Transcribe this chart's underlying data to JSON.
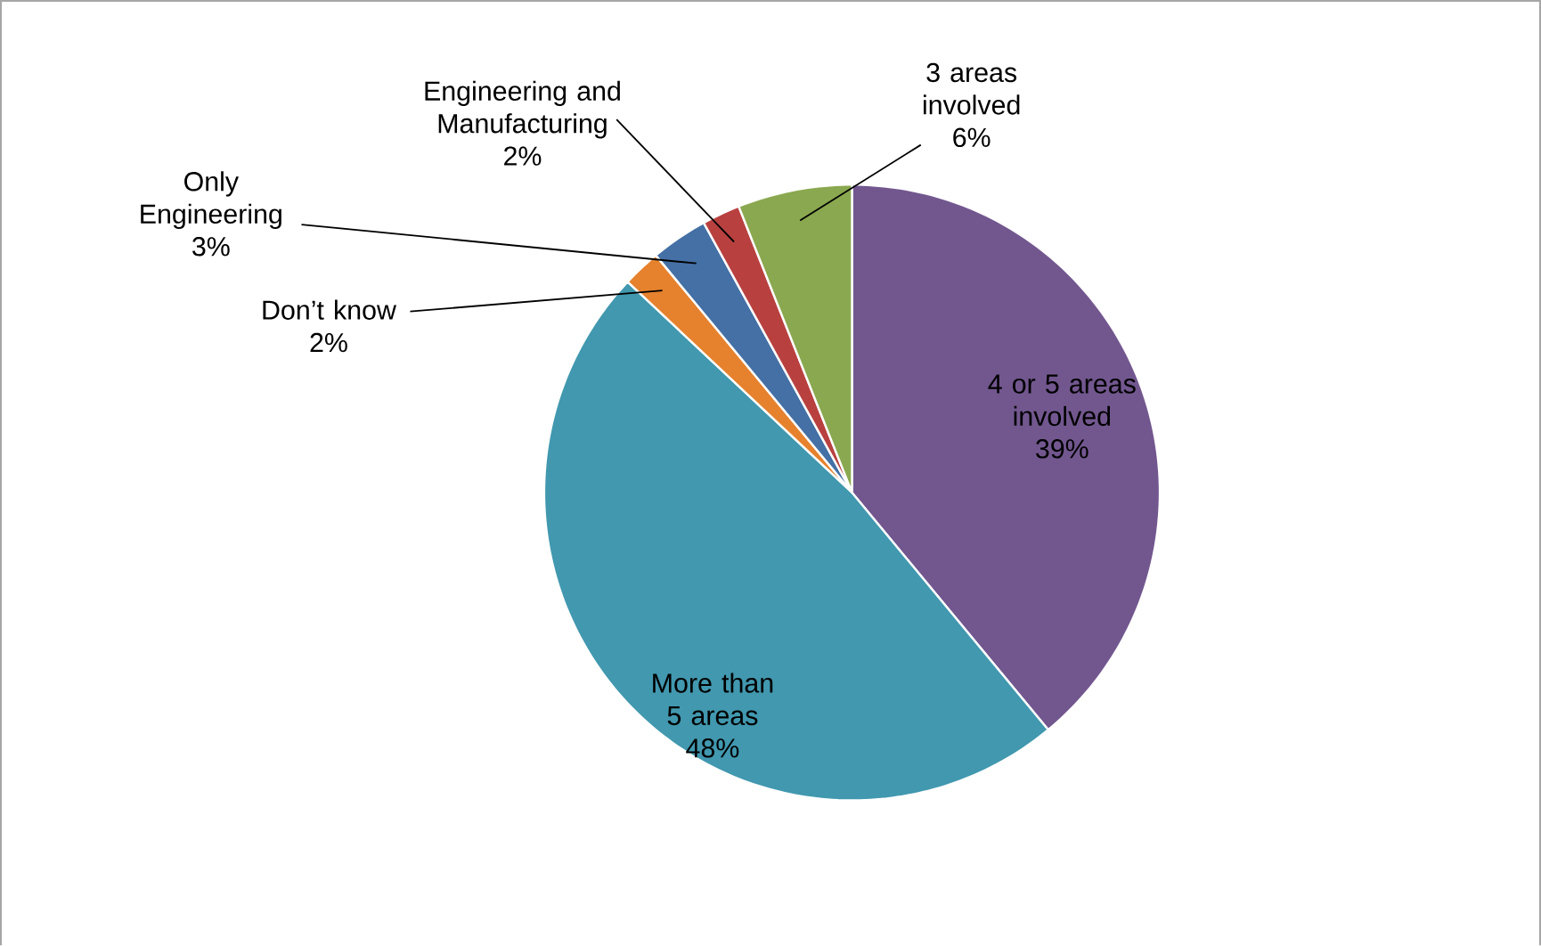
{
  "chart_data": {
    "type": "pie",
    "categories": [
      "4 or 5 areas involved",
      "More than 5 areas",
      "Don’t know",
      "Only Engineering",
      "Engineering and Manufacturing",
      "3 areas involved"
    ],
    "values": [
      39,
      48,
      2,
      3,
      2,
      6
    ],
    "value_labels": [
      "39%",
      "48%",
      "2%",
      "3%",
      "2%",
      "6%"
    ],
    "colors": [
      "#72578f",
      "#4198af",
      "#e6822e",
      "#4470a5",
      "#b84140",
      "#8aa84f"
    ]
  }
}
